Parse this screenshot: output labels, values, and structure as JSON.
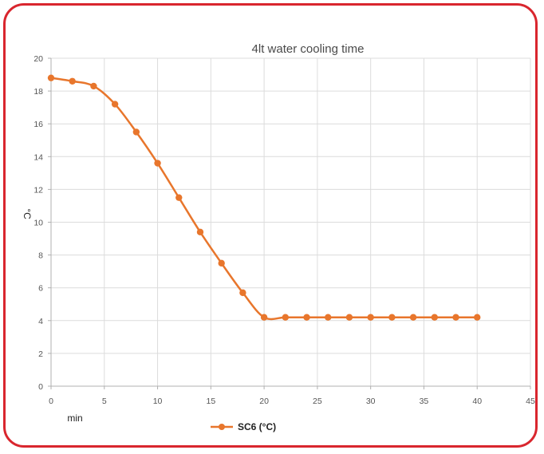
{
  "chart_data": {
    "type": "line",
    "title": "4lt water cooling time",
    "xlabel": "min",
    "ylabel": "°C",
    "xlim": [
      0,
      45
    ],
    "ylim": [
      0,
      20
    ],
    "x_ticks": [
      0,
      5,
      10,
      15,
      20,
      25,
      30,
      35,
      40,
      45
    ],
    "y_ticks": [
      0,
      2,
      4,
      6,
      8,
      10,
      12,
      14,
      16,
      18,
      20
    ],
    "grid": true,
    "legend_position": "bottom",
    "series": [
      {
        "name": "SC6 (°C)",
        "color": "#e8762c",
        "x": [
          0,
          2,
          4,
          6,
          8,
          10,
          12,
          14,
          16,
          18,
          20,
          22,
          24,
          26,
          28,
          30,
          32,
          34,
          36,
          38,
          40
        ],
        "y": [
          18.8,
          18.6,
          18.3,
          17.2,
          15.5,
          13.6,
          11.5,
          9.4,
          7.5,
          5.7,
          4.2,
          4.2,
          4.2,
          4.2,
          4.2,
          4.2,
          4.2,
          4.2,
          4.2,
          4.2,
          4.2
        ]
      }
    ]
  }
}
